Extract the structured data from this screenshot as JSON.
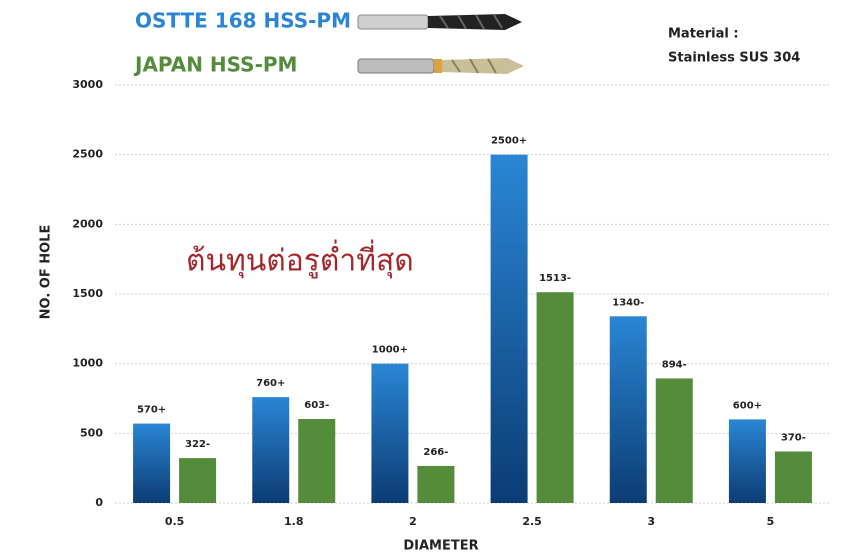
{
  "chart_data": {
    "type": "bar",
    "annotations": [
      "Material  :",
      "Stainless SUS 304",
      "ต้นทุนต่อรูต่ำที่สุด"
    ],
    "x_label": "DIAMETER",
    "y_label": "NO. OF HOLE",
    "categories": [
      "0.5",
      "1.8",
      "2",
      "2.5",
      "3",
      "5"
    ],
    "series": [
      {
        "name": "OSTTE 168 HSS-PM",
        "color": "#2a86d4",
        "gradient_color": "#0c3c74",
        "values": [
          570,
          760,
          1000,
          2500,
          1340,
          600
        ],
        "value_labels": [
          "570+",
          "760+",
          "1000+",
          "2500+",
          "1340-",
          "600+"
        ]
      },
      {
        "name": "JAPAN HSS-PM",
        "color": "#548c3c",
        "values": [
          322,
          603,
          266,
          1513,
          894,
          370
        ],
        "value_labels": [
          "322-",
          "603-",
          "266-",
          "1513-",
          "894-",
          "370-"
        ]
      }
    ],
    "ylim": [
      0,
      3000
    ],
    "yticks": [
      0,
      500,
      1000,
      1500,
      2000,
      2500,
      3000
    ],
    "grid": true
  }
}
